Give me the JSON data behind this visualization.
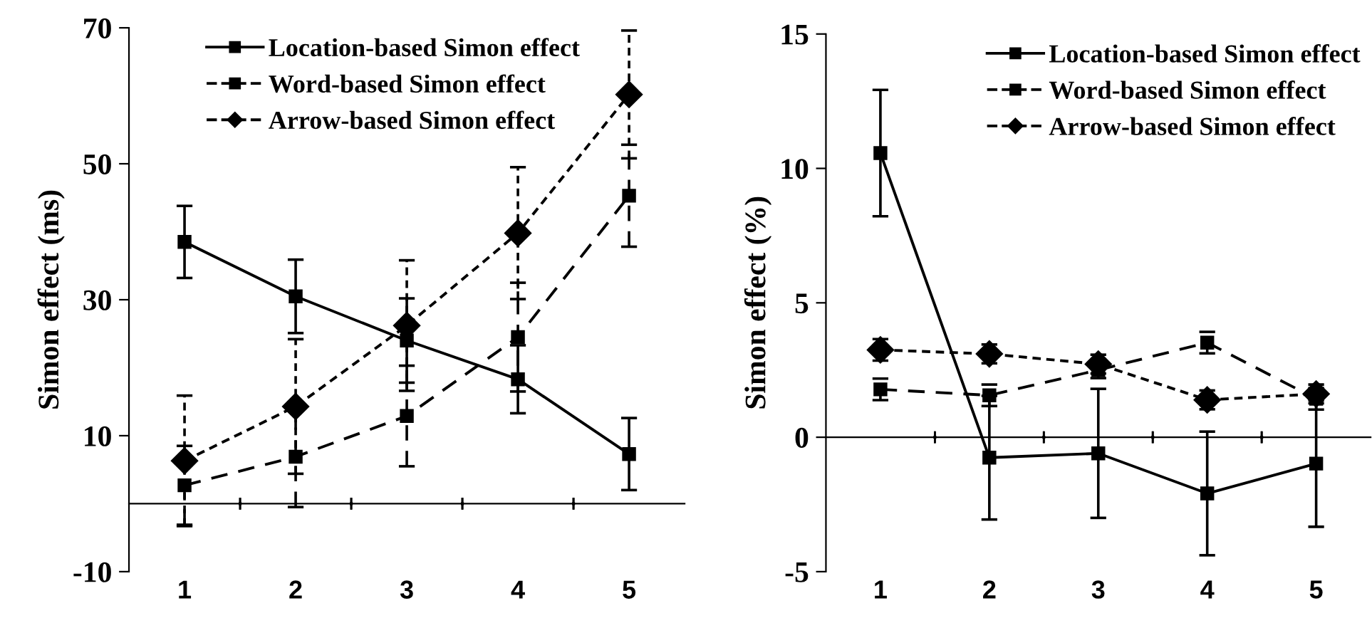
{
  "chart_data": [
    {
      "type": "line",
      "ylabel": "Simon effect (ms)",
      "categories": [
        "1",
        "2",
        "3",
        "4",
        "5"
      ],
      "ylim": [
        -10,
        70
      ],
      "yticks": [
        -10,
        10,
        30,
        50,
        70
      ],
      "legend": "top right",
      "series": [
        {
          "name": "Location-based Simon effect",
          "color": "#000000",
          "marker": "square",
          "line_style": "solid",
          "values": [
            38.5,
            30.5,
            24.0,
            18.3,
            7.3
          ],
          "errors": [
            5.3,
            5.4,
            6.2,
            5.0,
            5.3
          ]
        },
        {
          "name": "Word-based Simon effect",
          "color": "#000000",
          "marker": "square",
          "line_style": "dashed",
          "values": [
            2.7,
            6.9,
            12.9,
            24.5,
            45.3
          ],
          "errors": [
            5.8,
            7.4,
            7.4,
            8.0,
            7.5
          ]
        },
        {
          "name": "Arrow-based Simon effect",
          "color": "#000000",
          "marker": "diamond",
          "line_style": "dotted",
          "values": [
            6.3,
            14.3,
            26.2,
            39.8,
            60.2
          ],
          "errors": [
            9.6,
            9.9,
            9.6,
            9.7,
            9.4
          ]
        }
      ]
    },
    {
      "type": "line",
      "ylabel": "Simon effect (%)",
      "categories": [
        "1",
        "2",
        "3",
        "4",
        "5"
      ],
      "ylim": [
        -5,
        15
      ],
      "yticks": [
        -5,
        0,
        5,
        10,
        15
      ],
      "legend": "top right",
      "series": [
        {
          "name": "Location-based Simon effect",
          "color": "#000000",
          "marker": "square",
          "line_style": "solid",
          "values": [
            10.57,
            -0.76,
            -0.6,
            -2.09,
            -0.98
          ],
          "errors": [
            2.35,
            2.3,
            2.4,
            2.3,
            2.35
          ]
        },
        {
          "name": "Word-based Simon effect",
          "color": "#000000",
          "marker": "square",
          "line_style": "dashed",
          "values": [
            1.78,
            1.56,
            2.5,
            3.52,
            1.43
          ],
          "errors": [
            0.4,
            0.4,
            0.3,
            0.4,
            0.4
          ]
        },
        {
          "name": "Arrow-based Simon effect",
          "color": "#000000",
          "marker": "diamond",
          "line_style": "dotted",
          "values": [
            3.25,
            3.1,
            2.72,
            1.39,
            1.61
          ],
          "errors": [
            0.4,
            0.35,
            0.35,
            0.35,
            0.35
          ]
        }
      ]
    }
  ]
}
